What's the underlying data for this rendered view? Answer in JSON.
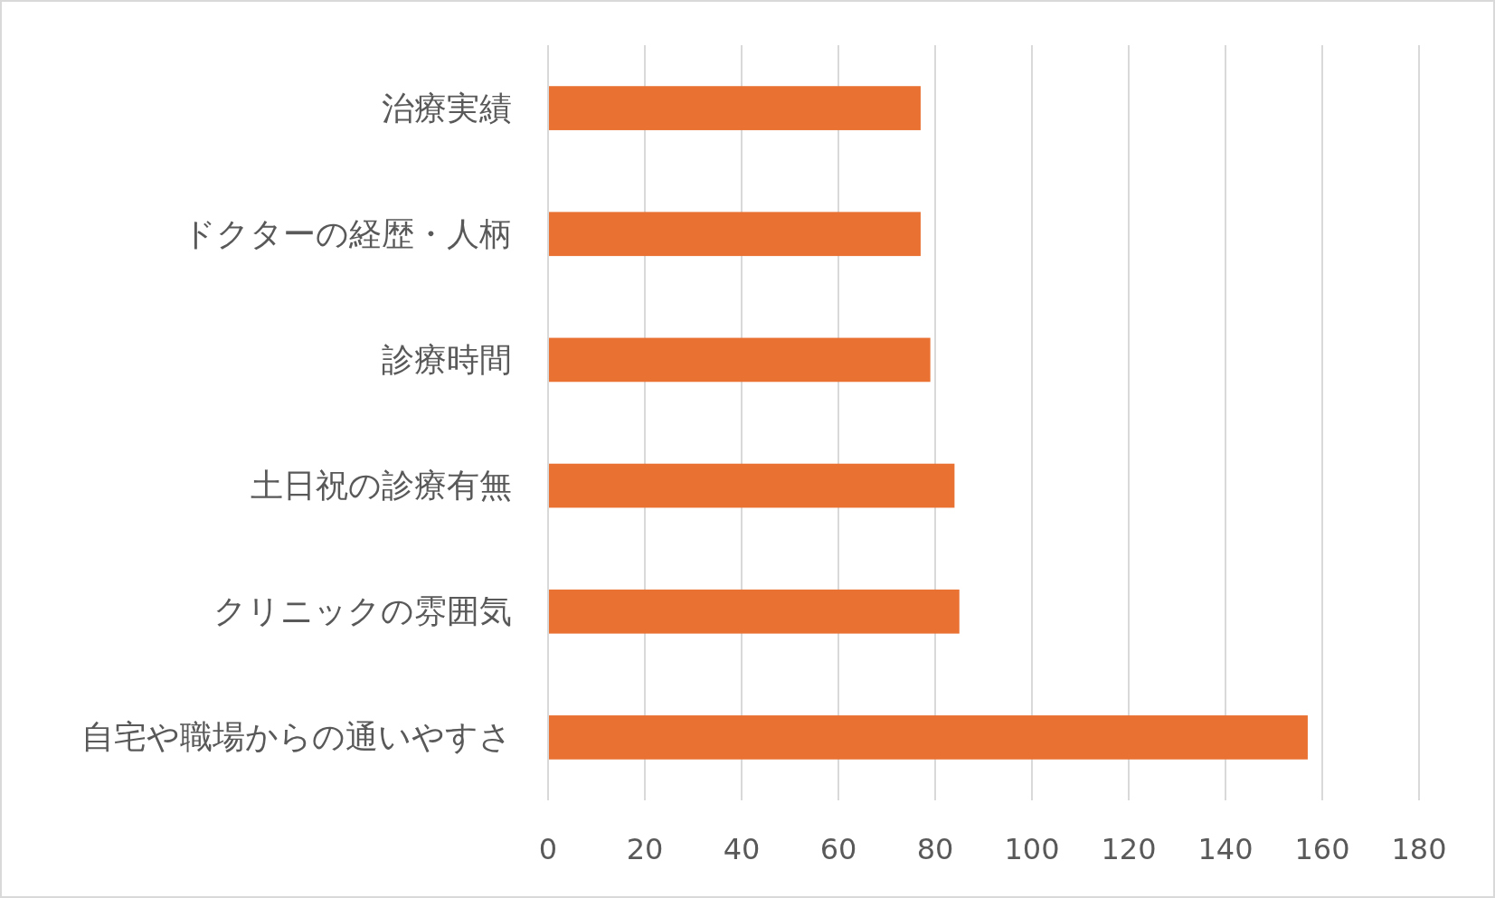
{
  "chart_data": {
    "type": "bar",
    "orientation": "horizontal",
    "categories": [
      "治療実績",
      "ドクターの経歴・人柄",
      "診療時間",
      "土日祝の診療有無",
      "クリニックの雰囲気",
      "自宅や職場からの通いやすさ"
    ],
    "values": [
      77,
      77,
      79,
      84,
      85,
      157
    ],
    "color": "#e97132",
    "xlim": [
      0,
      180
    ],
    "xticks": [
      0,
      20,
      40,
      60,
      80,
      100,
      120,
      140,
      160,
      180
    ],
    "grid": "x"
  }
}
